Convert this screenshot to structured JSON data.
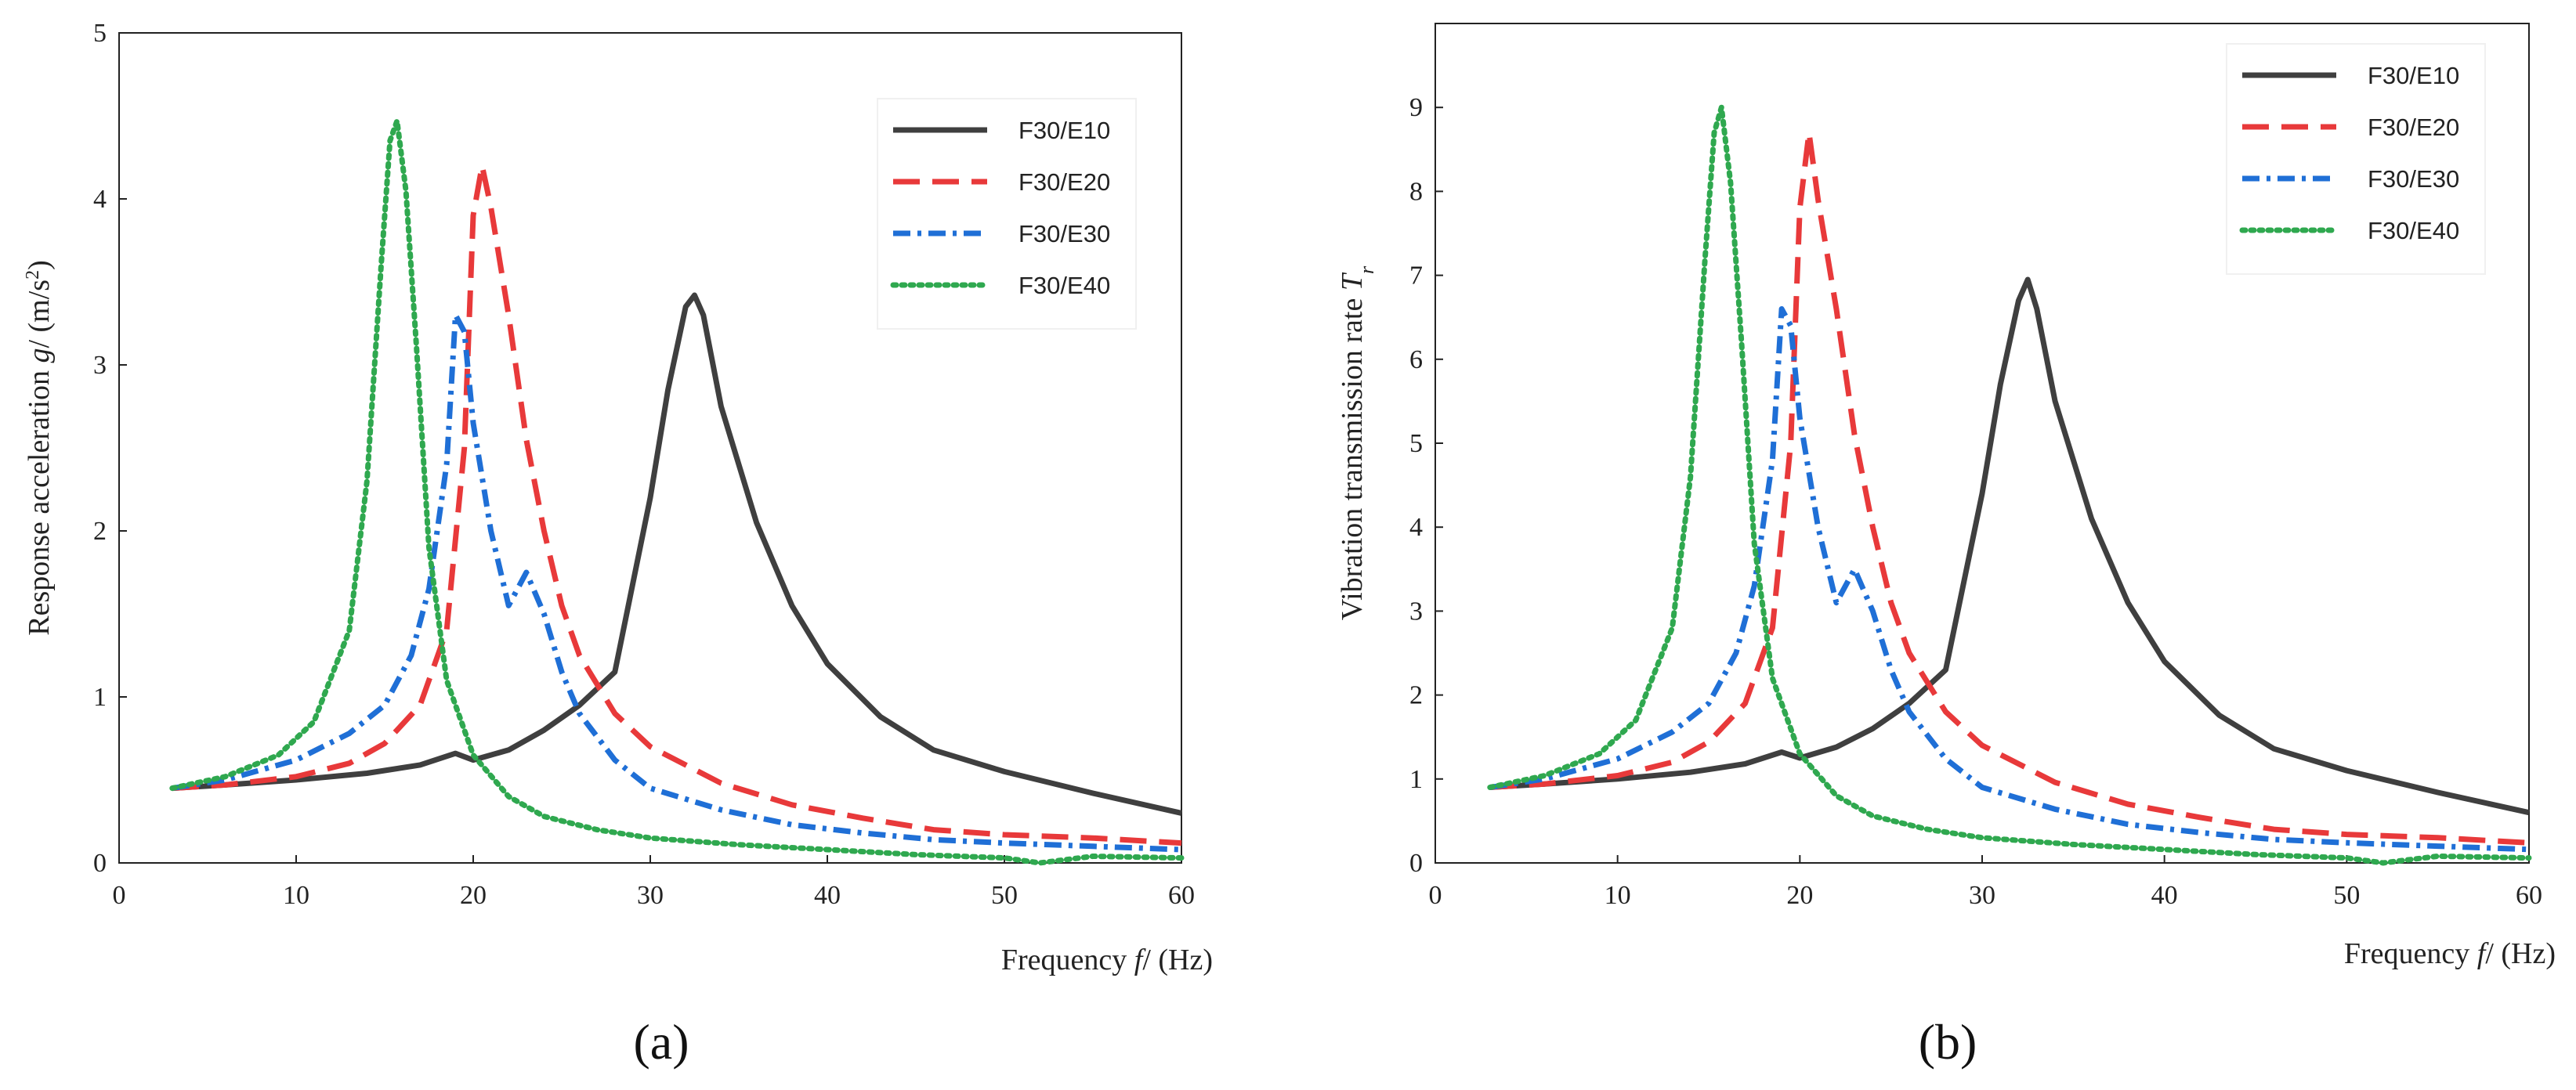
{
  "chart_data": [
    {
      "type": "line",
      "panel_label": "(a)",
      "xlabel_prefix": "Frequency ",
      "xlabel_var": "f",
      "xlabel_suffix": "/ (Hz)",
      "ylabel_prefix": "Response acceleration ",
      "ylabel_var": "g",
      "ylabel_suffix": "/ (m/s",
      "ylabel_sup": "2",
      "ylabel_close": ")",
      "xlim": [
        0,
        60
      ],
      "ylim": [
        0,
        5
      ],
      "xticks": [
        0,
        10,
        20,
        30,
        40,
        50,
        60
      ],
      "yticks": [
        0,
        1,
        2,
        3,
        4,
        5
      ],
      "legend_position": "top-right",
      "series": [
        {
          "name": "F30/E10",
          "color": "#3f3f3f",
          "dash": "solid",
          "x": [
            3,
            6,
            10,
            14,
            17,
            19,
            20,
            22,
            24,
            26,
            28,
            30,
            31,
            32,
            32.5,
            33,
            34,
            36,
            38,
            40,
            43,
            46,
            50,
            55,
            60
          ],
          "y": [
            0.45,
            0.47,
            0.5,
            0.54,
            0.59,
            0.66,
            0.62,
            0.68,
            0.8,
            0.95,
            1.15,
            2.2,
            2.85,
            3.35,
            3.42,
            3.3,
            2.75,
            2.05,
            1.55,
            1.2,
            0.88,
            0.68,
            0.55,
            0.42,
            0.3
          ]
        },
        {
          "name": "F30/E20",
          "color": "#e8393a",
          "dash": "longdash",
          "x": [
            3,
            6,
            10,
            13,
            15,
            17,
            18.5,
            19.5,
            20,
            20.5,
            21,
            22,
            23,
            24,
            25,
            26,
            28,
            30,
            34,
            38,
            42,
            46,
            50,
            55,
            60
          ],
          "y": [
            0.45,
            0.47,
            0.52,
            0.6,
            0.72,
            0.95,
            1.4,
            2.5,
            3.9,
            4.2,
            3.95,
            3.3,
            2.55,
            2.0,
            1.55,
            1.25,
            0.9,
            0.7,
            0.48,
            0.35,
            0.27,
            0.2,
            0.17,
            0.15,
            0.12
          ]
        },
        {
          "name": "F30/E30",
          "color": "#1f6fd6",
          "dash": "dashdot",
          "x": [
            3,
            6,
            10,
            13,
            15,
            16.5,
            17.5,
            18.5,
            19,
            19.5,
            20,
            21,
            22,
            23,
            24,
            25,
            26,
            28,
            30,
            34,
            38,
            42,
            46,
            50,
            55,
            60
          ],
          "y": [
            0.45,
            0.5,
            0.62,
            0.78,
            0.95,
            1.25,
            1.65,
            2.4,
            3.3,
            3.2,
            2.65,
            2.0,
            1.55,
            1.75,
            1.5,
            1.15,
            0.9,
            0.62,
            0.45,
            0.32,
            0.23,
            0.18,
            0.14,
            0.12,
            0.1,
            0.08
          ]
        },
        {
          "name": "F30/E40",
          "color": "#2fa84f",
          "dash": "dot",
          "x": [
            3,
            6,
            9,
            11,
            13,
            14,
            14.8,
            15.3,
            15.7,
            16.2,
            16.8,
            17.5,
            18.5,
            20,
            22,
            24,
            27,
            30,
            35,
            40,
            45,
            50,
            52,
            55,
            60
          ],
          "y": [
            0.45,
            0.52,
            0.65,
            0.85,
            1.4,
            2.3,
            3.6,
            4.35,
            4.47,
            4.05,
            3.1,
            1.9,
            1.1,
            0.65,
            0.4,
            0.28,
            0.2,
            0.15,
            0.11,
            0.08,
            0.05,
            0.03,
            0.0,
            0.04,
            0.03
          ]
        }
      ]
    },
    {
      "type": "line",
      "panel_label": "(b)",
      "xlabel_prefix": "Frequency ",
      "xlabel_var": "f",
      "xlabel_suffix": "/ (Hz)",
      "ylabel_prefix": "Vibration transmission rate ",
      "ylabel_var": "T",
      "ylabel_sub": "r",
      "xlim": [
        0,
        60
      ],
      "ylim": [
        0,
        10
      ],
      "xticks": [
        0,
        10,
        20,
        30,
        40,
        50,
        60
      ],
      "yticks": [
        0,
        1,
        2,
        3,
        4,
        5,
        6,
        7,
        8,
        9
      ],
      "legend_position": "top-right",
      "series": [
        {
          "name": "F30/E10",
          "color": "#3f3f3f",
          "dash": "solid",
          "x": [
            3,
            6,
            10,
            14,
            17,
            19,
            20,
            22,
            24,
            26,
            28,
            30,
            31,
            32,
            32.5,
            33,
            34,
            36,
            38,
            40,
            43,
            46,
            50,
            55,
            60
          ],
          "y": [
            0.9,
            0.94,
            1.0,
            1.08,
            1.18,
            1.32,
            1.25,
            1.38,
            1.6,
            1.9,
            2.3,
            4.4,
            5.7,
            6.7,
            6.95,
            6.6,
            5.5,
            4.1,
            3.1,
            2.4,
            1.76,
            1.36,
            1.1,
            0.84,
            0.6
          ]
        },
        {
          "name": "F30/E20",
          "color": "#e8393a",
          "dash": "longdash",
          "x": [
            3,
            6,
            10,
            13,
            15,
            17,
            18.5,
            19.5,
            20,
            20.5,
            21,
            22,
            23,
            24,
            25,
            26,
            28,
            30,
            34,
            38,
            42,
            46,
            50,
            55,
            60
          ],
          "y": [
            0.9,
            0.94,
            1.04,
            1.2,
            1.44,
            1.9,
            2.8,
            5.0,
            7.8,
            8.7,
            7.9,
            6.6,
            5.1,
            4.0,
            3.1,
            2.5,
            1.8,
            1.4,
            0.96,
            0.7,
            0.54,
            0.4,
            0.34,
            0.3,
            0.24
          ]
        },
        {
          "name": "F30/E30",
          "color": "#1f6fd6",
          "dash": "dashdot",
          "x": [
            3,
            6,
            10,
            13,
            15,
            16.5,
            17.5,
            18.5,
            19,
            19.5,
            20,
            21,
            22,
            23,
            24,
            25,
            26,
            28,
            30,
            34,
            38,
            42,
            46,
            50,
            55,
            60
          ],
          "y": [
            0.9,
            1.0,
            1.24,
            1.56,
            1.9,
            2.5,
            3.3,
            4.8,
            6.6,
            6.4,
            5.3,
            4.0,
            3.1,
            3.5,
            3.0,
            2.3,
            1.8,
            1.24,
            0.9,
            0.64,
            0.46,
            0.36,
            0.28,
            0.24,
            0.2,
            0.16
          ]
        },
        {
          "name": "F30/E40",
          "color": "#2fa84f",
          "dash": "dot",
          "x": [
            3,
            6,
            9,
            11,
            13,
            14,
            14.8,
            15.3,
            15.7,
            16.2,
            16.8,
            17.5,
            18.5,
            20,
            22,
            24,
            27,
            30,
            35,
            40,
            45,
            50,
            52,
            55,
            60
          ],
          "y": [
            0.9,
            1.04,
            1.3,
            1.7,
            2.8,
            4.6,
            7.2,
            8.7,
            9.0,
            8.1,
            6.2,
            3.8,
            2.2,
            1.3,
            0.8,
            0.56,
            0.4,
            0.3,
            0.22,
            0.16,
            0.1,
            0.06,
            0.0,
            0.08,
            0.06
          ]
        }
      ]
    }
  ]
}
